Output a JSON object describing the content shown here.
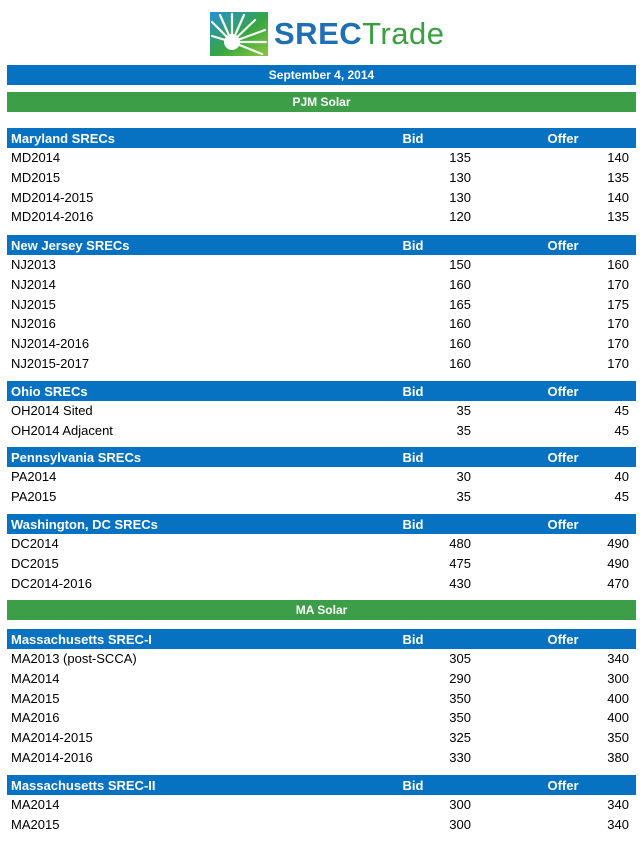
{
  "brand": {
    "part1": "SREC",
    "part2": "Trade",
    "icon": "sunburst-logo-icon"
  },
  "date_bar": "September 4, 2014",
  "groups": [
    {
      "title": "PJM Solar",
      "sections": [
        {
          "name": "Maryland SRECs",
          "bid_label": "Bid",
          "offer_label": "Offer",
          "rows": [
            [
              "MD2014",
              "135",
              "140"
            ],
            [
              "MD2015",
              "130",
              "135"
            ],
            [
              "MD2014-2015",
              "130",
              "140"
            ],
            [
              "MD2014-2016",
              "120",
              "135"
            ]
          ]
        },
        {
          "name": "New Jersey SRECs",
          "bid_label": "Bid",
          "offer_label": "Offer",
          "rows": [
            [
              "NJ2013",
              "150",
              "160"
            ],
            [
              "NJ2014",
              "160",
              "170"
            ],
            [
              "NJ2015",
              "165",
              "175"
            ],
            [
              "NJ2016",
              "160",
              "170"
            ],
            [
              "NJ2014-2016",
              "160",
              "170"
            ],
            [
              "NJ2015-2017",
              "160",
              "170"
            ]
          ]
        },
        {
          "name": "Ohio SRECs",
          "bid_label": "Bid",
          "offer_label": "Offer",
          "rows": [
            [
              "OH2014 Sited",
              "35",
              "45"
            ],
            [
              "OH2014 Adjacent",
              "35",
              "45"
            ]
          ]
        },
        {
          "name": "Pennsylvania SRECs",
          "bid_label": "Bid",
          "offer_label": "Offer",
          "rows": [
            [
              "PA2014",
              "30",
              "40"
            ],
            [
              "PA2015",
              "35",
              "45"
            ]
          ]
        },
        {
          "name": "Washington, DC SRECs",
          "bid_label": "Bid",
          "offer_label": "Offer",
          "rows": [
            [
              "DC2014",
              "480",
              "490"
            ],
            [
              "DC2015",
              "475",
              "490"
            ],
            [
              "DC2014-2016",
              "430",
              "470"
            ]
          ]
        }
      ]
    },
    {
      "title": "MA Solar",
      "sections": [
        {
          "name": "Massachusetts SREC-I",
          "bid_label": "Bid",
          "offer_label": "Offer",
          "rows": [
            [
              "MA2013 (post-SCCA)",
              "305",
              "340"
            ],
            [
              "MA2014",
              "290",
              "300"
            ],
            [
              "MA2015",
              "350",
              "400"
            ],
            [
              "MA2016",
              "350",
              "400"
            ],
            [
              "MA2014-2015",
              "325",
              "350"
            ],
            [
              "MA2014-2016",
              "330",
              "380"
            ]
          ]
        },
        {
          "name": "Massachusetts SREC-II",
          "bid_label": "Bid",
          "offer_label": "Offer",
          "rows": [
            [
              "MA2014",
              "300",
              "340"
            ],
            [
              "MA2015",
              "300",
              "340"
            ]
          ]
        }
      ]
    }
  ]
}
